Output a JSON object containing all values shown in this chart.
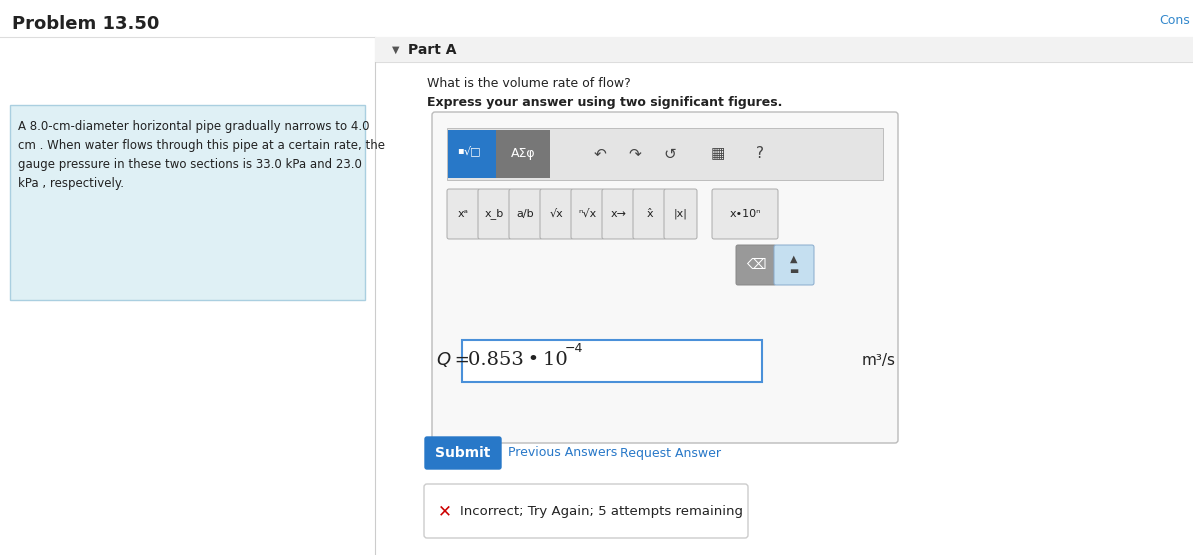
{
  "title": "Problem 13.50",
  "cons_text": "Cons",
  "problem_text_lines": [
    "A 8.0-cm-diameter horizontal pipe gradually narrows to 4.0",
    "cm . When water flows through this pipe at a certain rate, the",
    "gauge pressure in these two sections is 33.0 kPa and 23.0",
    "kPa , respectively."
  ],
  "part_label": "Part A",
  "question": "What is the volume rate of flow?",
  "instruction": "Express your answer using two significant figures.",
  "answer_unit": "m³/s",
  "submit_text": "Submit",
  "prev_answers_text": "Previous Answers",
  "request_answer_text": "Request Answer",
  "incorrect_text": "Incorrect; Try Again; 5 attempts remaining",
  "bg_color": "#ffffff",
  "problem_box_bg": "#dff0f5",
  "problem_box_border": "#aacfe0",
  "part_section_bg": "#f2f2f2",
  "toolbar_outer_bg": "#f8f8f8",
  "toolbar_outer_border": "#bbbbbb",
  "toolbar_row1_bg": "#e4e4e4",
  "btn_bg": "#e8e8e8",
  "btn_border": "#aaaaaa",
  "blue_btn_color": "#2878c8",
  "gray_btn_color": "#777777",
  "input_box_border": "#4a90d9",
  "submit_btn_color": "#2878c8",
  "link_color": "#2878c8",
  "incorrect_box_border": "#cccccc",
  "incorrect_x_color": "#cc0000",
  "separator_color": "#cccccc",
  "divider_color": "#dddddd",
  "text_dark": "#222222",
  "text_mid": "#555555"
}
